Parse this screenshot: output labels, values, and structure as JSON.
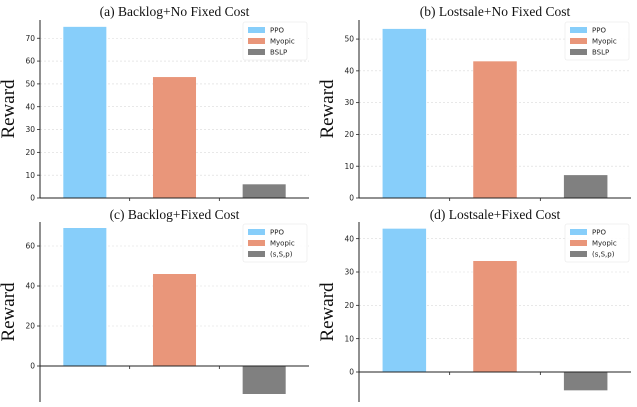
{
  "chart_data": [
    {
      "type": "bar",
      "title": "(a) Backlog+No Fixed Cost",
      "ylabel": "Reward",
      "categories": [
        "PPO",
        "Myopic",
        "BSLP"
      ],
      "values": [
        75,
        53,
        6
      ],
      "ylim": [
        0,
        78
      ],
      "yticks": [
        0,
        10,
        20,
        30,
        40,
        50,
        60,
        70
      ],
      "grid": "y",
      "legend": "top-right"
    },
    {
      "type": "bar",
      "title": "(b) Lostsale+No Fixed Cost",
      "ylabel": "Reward",
      "categories": [
        "PPO",
        "Myopic",
        "BSLP"
      ],
      "values": [
        53.2,
        43,
        7.2
      ],
      "ylim": [
        0,
        56
      ],
      "yticks": [
        0,
        10,
        20,
        30,
        40,
        50
      ],
      "grid": "y",
      "legend": "top-right"
    },
    {
      "type": "bar",
      "title": "(c) Backlog+Fixed Cost",
      "ylabel": "Reward",
      "categories": [
        "PPO",
        "Myopic",
        "(s,S,p)"
      ],
      "values": [
        69,
        46,
        -14
      ],
      "ylim": [
        -18,
        72
      ],
      "yticks": [
        0,
        20,
        40,
        60
      ],
      "grid": "y",
      "legend": "top-right"
    },
    {
      "type": "bar",
      "title": "(d) Lostsale+Fixed Cost",
      "ylabel": "Reward",
      "categories": [
        "PPO",
        "Myopic",
        "(s,S,p)"
      ],
      "values": [
        43,
        33.3,
        -5.5
      ],
      "ylim": [
        -9,
        45
      ],
      "yticks": [
        0,
        10,
        20,
        30,
        40
      ],
      "grid": "y",
      "legend": "top-right"
    }
  ],
  "colors": {
    "series": [
      "#87cefa",
      "#e9967a",
      "#808080"
    ],
    "grid": "#d9d9d9",
    "axis": "#222222"
  }
}
